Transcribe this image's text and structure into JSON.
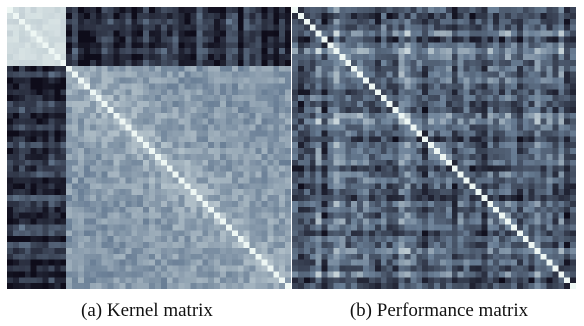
{
  "captions": {
    "a": "(a) Kernel matrix",
    "b": "(b) Performance matrix"
  },
  "colormap": {
    "low": "#0e0c1a",
    "mid": "#6a7f96",
    "high": "#eef7f4"
  },
  "chart_data": [
    {
      "type": "heatmap",
      "caption": "(a) Kernel matrix",
      "n": 48,
      "symmetric": true,
      "diagonal_value": 1.0,
      "group_boundary": 10,
      "seed": 17,
      "block_levels": {
        "top_left": 0.88,
        "off_diagonal": 0.18,
        "bottom_right": 0.6
      },
      "noise": 0.22,
      "grid": false,
      "legend": "none"
    },
    {
      "type": "heatmap",
      "caption": "(b) Performance matrix",
      "n": 48,
      "symmetric": true,
      "diagonal_value": 1.0,
      "seed": 91,
      "base_level": 0.42,
      "noise": 0.35,
      "grid": false,
      "legend": "none"
    }
  ]
}
